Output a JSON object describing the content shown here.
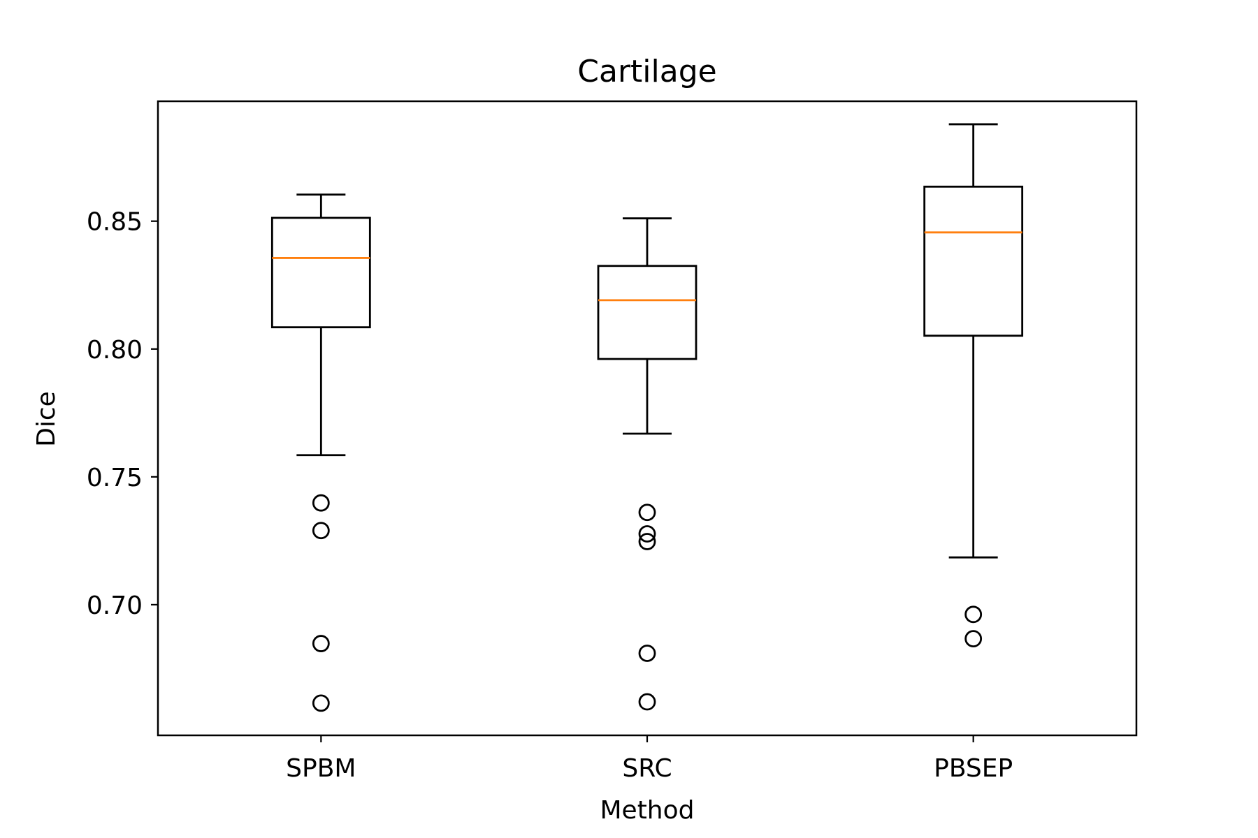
{
  "chart_data": {
    "type": "box",
    "title": "Cartilage",
    "xlabel": "Method",
    "ylabel": "Dice",
    "categories": [
      "SPBM",
      "SRC",
      "PBSEP"
    ],
    "yticks": [
      0.7,
      0.75,
      0.8,
      0.85
    ],
    "ytick_labels": [
      "0.70",
      "0.75",
      "0.80",
      "0.85"
    ],
    "ylim": [
      0.6489,
      0.8969
    ],
    "grid": false,
    "boxes": [
      {
        "label": "SPBM",
        "whisker_low": 0.7585,
        "q1": 0.8085,
        "median": 0.8356,
        "q3": 0.8513,
        "whisker_high": 0.8604,
        "outliers": [
          0.7398,
          0.729,
          0.6848,
          0.6615
        ]
      },
      {
        "label": "SRC",
        "whisker_low": 0.7669,
        "q1": 0.7961,
        "median": 0.8191,
        "q3": 0.8325,
        "whisker_high": 0.8511,
        "outliers": [
          0.7361,
          0.7277,
          0.7247,
          0.681,
          0.662
        ]
      },
      {
        "label": "PBSEP",
        "whisker_low": 0.7185,
        "q1": 0.8052,
        "median": 0.8456,
        "q3": 0.8635,
        "whisker_high": 0.8879,
        "outliers": [
          0.6962,
          0.6867
        ]
      }
    ],
    "colors": {
      "box": "#000000",
      "median": "#ff7f0e",
      "outlier": "#000000"
    }
  }
}
